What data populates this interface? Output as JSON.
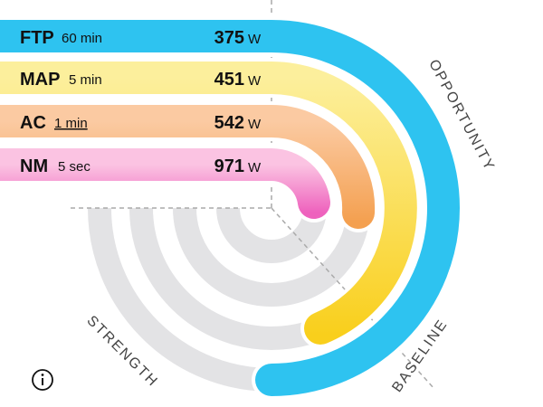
{
  "rows": [
    {
      "label": "FTP",
      "duration": "60 min",
      "value": "375",
      "unit": "W"
    },
    {
      "label": "MAP",
      "duration": "5 min",
      "value": "451",
      "unit": "W"
    },
    {
      "label": "AC",
      "duration": "1 min",
      "value": "542",
      "unit": "W"
    },
    {
      "label": "NM",
      "duration": "5 sec",
      "value": "971",
      "unit": "W"
    }
  ],
  "axis_labels": {
    "opportunity": "OPPORTUNITY",
    "strength": "STRENGTH",
    "baseline": "BASELINE"
  }
}
